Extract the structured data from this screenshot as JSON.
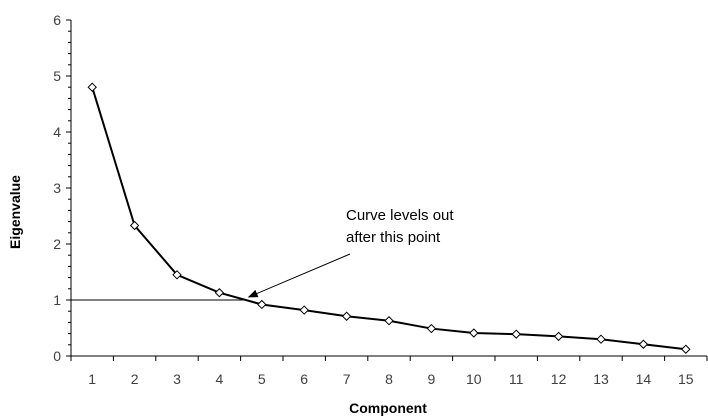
{
  "chart_data": {
    "type": "line",
    "title": "",
    "xlabel": "Component",
    "ylabel": "Eigenvalue",
    "x": [
      1,
      2,
      3,
      4,
      5,
      6,
      7,
      8,
      9,
      10,
      11,
      12,
      13,
      14,
      15
    ],
    "series": [
      {
        "values": [
          4.8,
          2.33,
          1.45,
          1.13,
          0.92,
          0.82,
          0.71,
          0.63,
          0.49,
          0.41,
          0.39,
          0.35,
          0.3,
          0.21,
          0.12
        ],
        "color": "#000000",
        "marker": "diamond"
      }
    ],
    "xlim": [
      0.5,
      15.5
    ],
    "ylim": [
      0,
      6
    ],
    "x_ticks": [
      "1",
      "2",
      "3",
      "4",
      "5",
      "6",
      "7",
      "8",
      "9",
      "10",
      "11",
      "12",
      "13",
      "14",
      "15"
    ],
    "y_ticks": [
      "0",
      "1",
      "2",
      "3",
      "4",
      "5",
      "6"
    ],
    "reference_line": {
      "y": 1,
      "x_start": 0.5,
      "x_end": 4.65
    },
    "annotation": {
      "lines": [
        "Curve levels out",
        "after this point"
      ],
      "points_to": {
        "x": 4.62,
        "y": 1.0
      }
    },
    "grid": false,
    "legend": "none"
  }
}
